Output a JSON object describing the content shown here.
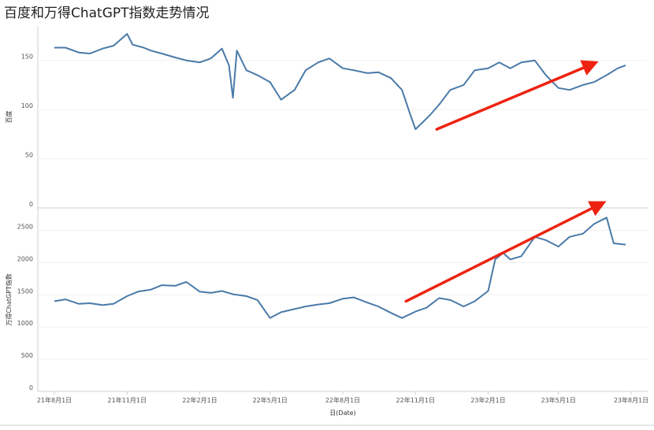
{
  "title": "百度和万得ChatGPT指数走势情况",
  "chart_data": [
    {
      "type": "line",
      "ylabel": "百度",
      "ylim": [
        0,
        185
      ],
      "yticks": [
        0,
        50,
        100,
        150
      ],
      "color": "#4a7aa8",
      "x": [
        "2021-08-01",
        "2021-08-15",
        "2021-09-01",
        "2021-09-15",
        "2021-10-01",
        "2021-10-15",
        "2021-11-01",
        "2021-11-08",
        "2021-11-22",
        "2021-12-01",
        "2021-12-15",
        "2022-01-01",
        "2022-01-15",
        "2022-02-01",
        "2022-02-15",
        "2022-03-01",
        "2022-03-10",
        "2022-03-15",
        "2022-03-20",
        "2022-04-01",
        "2022-04-15",
        "2022-05-01",
        "2022-05-15",
        "2022-06-01",
        "2022-06-15",
        "2022-07-01",
        "2022-07-15",
        "2022-08-01",
        "2022-08-15",
        "2022-09-01",
        "2022-09-15",
        "2022-10-01",
        "2022-10-15",
        "2022-10-25",
        "2022-11-01",
        "2022-11-10",
        "2022-11-20",
        "2022-12-01",
        "2022-12-15",
        "2023-01-01",
        "2023-01-15",
        "2023-02-01",
        "2023-02-15",
        "2023-03-01",
        "2023-03-15",
        "2023-04-01",
        "2023-04-15",
        "2023-05-01",
        "2023-05-15",
        "2023-06-01",
        "2023-06-15",
        "2023-07-01",
        "2023-07-15",
        "2023-07-25"
      ],
      "values": [
        163,
        163,
        158,
        157,
        162,
        165,
        177,
        166,
        163,
        160,
        157,
        153,
        150,
        148,
        152,
        162,
        145,
        112,
        160,
        140,
        135,
        128,
        110,
        120,
        140,
        148,
        152,
        142,
        140,
        137,
        138,
        132,
        120,
        96,
        80,
        87,
        95,
        105,
        120,
        125,
        140,
        142,
        148,
        142,
        148,
        150,
        135,
        122,
        120,
        125,
        128,
        135,
        142,
        145
      ]
    },
    {
      "type": "line",
      "ylabel": "万得ChatGPT指数",
      "ylim": [
        0,
        2850
      ],
      "yticks": [
        0,
        500,
        1000,
        1500,
        2000,
        2500
      ],
      "color": "#4a7aa8",
      "x": [
        "2021-08-01",
        "2021-08-15",
        "2021-09-01",
        "2021-09-15",
        "2021-10-01",
        "2021-10-15",
        "2021-11-01",
        "2021-11-15",
        "2021-12-01",
        "2021-12-15",
        "2022-01-01",
        "2022-01-15",
        "2022-02-01",
        "2022-02-15",
        "2022-03-01",
        "2022-03-15",
        "2022-04-01",
        "2022-04-15",
        "2022-05-01",
        "2022-05-15",
        "2022-06-01",
        "2022-06-15",
        "2022-07-01",
        "2022-07-15",
        "2022-08-01",
        "2022-08-15",
        "2022-09-01",
        "2022-09-15",
        "2022-10-01",
        "2022-10-15",
        "2022-11-01",
        "2022-11-15",
        "2022-12-01",
        "2022-12-15",
        "2023-01-01",
        "2023-01-15",
        "2023-02-01",
        "2023-02-10",
        "2023-02-20",
        "2023-03-01",
        "2023-03-15",
        "2023-04-01",
        "2023-04-15",
        "2023-05-01",
        "2023-05-15",
        "2023-06-01",
        "2023-06-15",
        "2023-07-01",
        "2023-07-10",
        "2023-07-25"
      ],
      "values": [
        1400,
        1430,
        1360,
        1370,
        1340,
        1360,
        1480,
        1550,
        1580,
        1650,
        1640,
        1700,
        1550,
        1530,
        1560,
        1510,
        1480,
        1420,
        1140,
        1230,
        1280,
        1320,
        1350,
        1370,
        1440,
        1460,
        1380,
        1320,
        1220,
        1140,
        1240,
        1300,
        1450,
        1420,
        1320,
        1400,
        1560,
        2050,
        2150,
        2050,
        2100,
        2400,
        2350,
        2250,
        2400,
        2450,
        2600,
        2700,
        2300,
        2280
      ]
    }
  ],
  "x_axis": {
    "label": "日(Date)",
    "ticks": [
      {
        "date": "2021-08-01",
        "label": "21年8月1日"
      },
      {
        "date": "2021-11-01",
        "label": "21年11月1日"
      },
      {
        "date": "2022-02-01",
        "label": "22年2月1日"
      },
      {
        "date": "2022-05-01",
        "label": "22年5月1日"
      },
      {
        "date": "2022-08-01",
        "label": "22年8月1日"
      },
      {
        "date": "2022-11-01",
        "label": "22年11月1日"
      },
      {
        "date": "2023-02-01",
        "label": "23年2月1日"
      },
      {
        "date": "2023-05-01",
        "label": "23年5月1日"
      },
      {
        "date": "2023-08-01",
        "label": "23年8月1日"
      }
    ]
  },
  "annotations": [
    {
      "type": "arrow",
      "color": "#ee2211",
      "panel": 0,
      "from": {
        "date": "2022-11-28",
        "value": 80
      },
      "to": {
        "date": "2023-06-15",
        "value": 147
      }
    },
    {
      "type": "arrow",
      "color": "#ee2211",
      "panel": 1,
      "from": {
        "date": "2022-10-20",
        "value": 1400
      },
      "to": {
        "date": "2023-06-25",
        "value": 2920
      }
    }
  ]
}
